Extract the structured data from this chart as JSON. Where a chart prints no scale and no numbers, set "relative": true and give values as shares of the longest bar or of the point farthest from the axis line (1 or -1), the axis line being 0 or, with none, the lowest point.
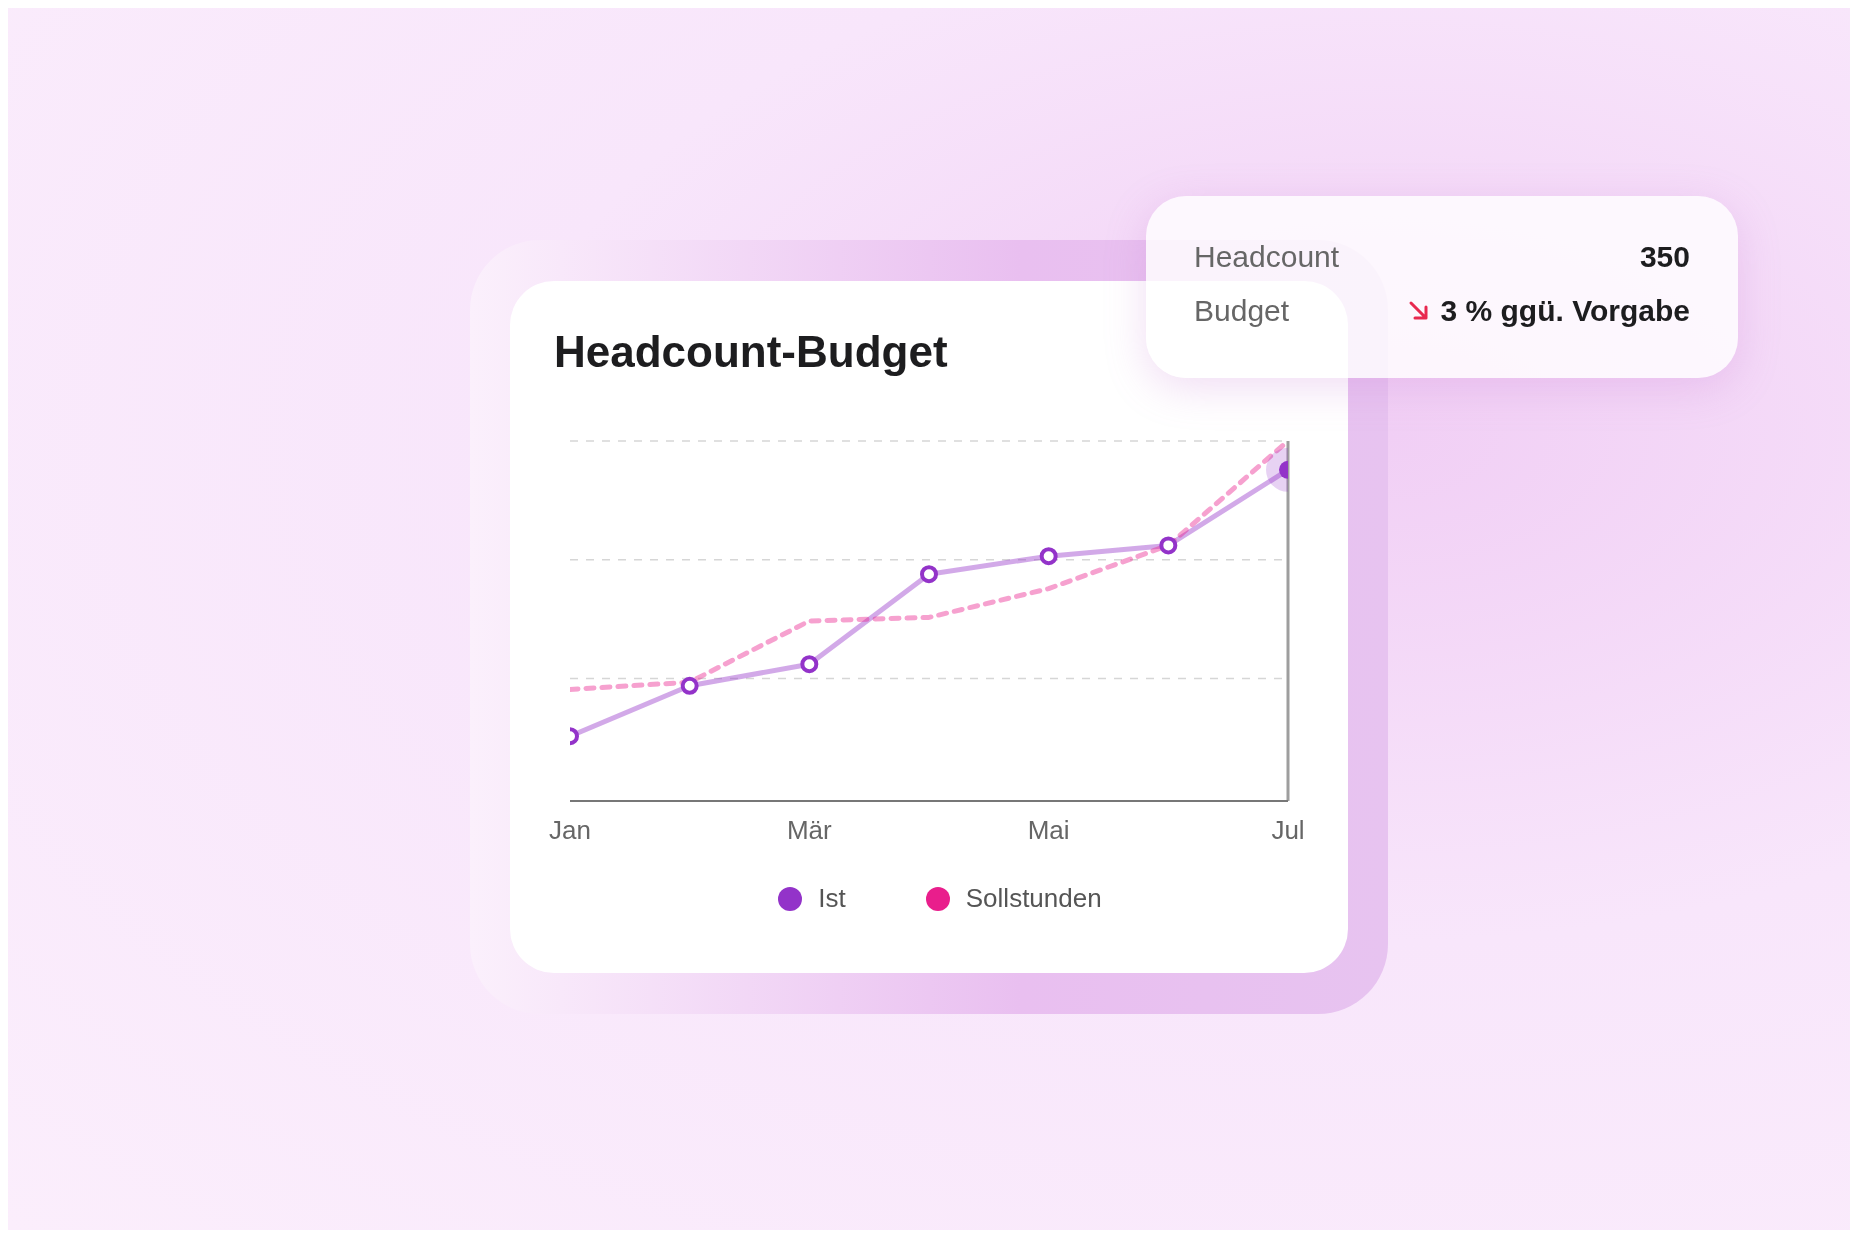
{
  "chart_data": {
    "type": "line",
    "title": "Headcount-Budget",
    "categories": [
      "Jan",
      null,
      "Mär",
      null,
      "Mai",
      null,
      "Jul"
    ],
    "relative": true,
    "legend": "bottom",
    "series": [
      {
        "name": "Ist",
        "color": "#9333c9",
        "values": [
          0.18,
          0.32,
          0.38,
          0.63,
          0.68,
          0.71,
          0.92
        ],
        "marker": "circle",
        "line_style": "solid"
      },
      {
        "name": "Sollstunden",
        "color": "#e91e8c",
        "values": [
          0.31,
          0.33,
          0.5,
          0.51,
          0.59,
          0.71,
          1
        ],
        "marker": "none",
        "line_style": "dashed"
      }
    ],
    "ref_lines": [
      {
        "axis": "y",
        "value": 0.34,
        "color": "#d6d6d6",
        "line_style": "dashed"
      },
      {
        "axis": "y",
        "value": 0.67,
        "color": "#d6d6d6",
        "line_style": "dashed"
      },
      {
        "axis": "y",
        "value": 1,
        "color": "#d6d6d6",
        "line_style": "dashed"
      },
      {
        "axis": "x",
        "value": "Jul",
        "color": "#9e9e9e"
      }
    ],
    "annotations": [
      "Headcount",
      "350",
      "Budget",
      "3 % ggü. Vorgabe"
    ]
  }
}
